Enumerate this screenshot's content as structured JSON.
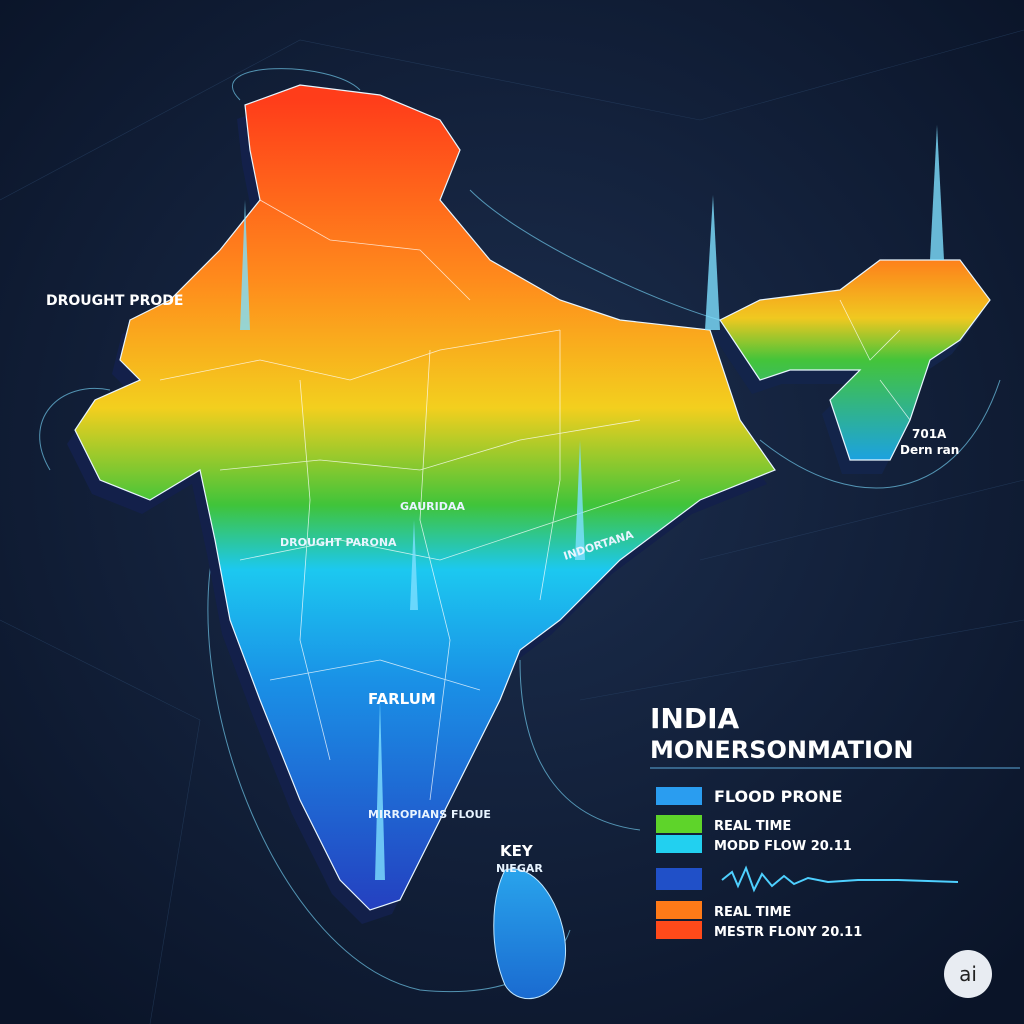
{
  "title": {
    "line1": "INDIA",
    "line2": "MONERSONMATION"
  },
  "map_labels": {
    "drought_left": "DROUGHT PRODE",
    "drought_central": "DROUGHT PARONA",
    "central": "GAURIDAA",
    "middle": "INDORTANA",
    "south": "FARLUM",
    "south_tip": "MIRROPIANS FLOUE",
    "key": "KEY",
    "niegar": "NIEGAR",
    "northeast_code": "701A",
    "northeast_name": "Dern ran"
  },
  "legend": [
    {
      "label": "FLOOD PRONE",
      "color": "#2a9df0"
    },
    {
      "label": "REAL TIME",
      "color": "#5ed42a"
    },
    {
      "label": "MODD FLOW 20.11",
      "color": "#22d0f0"
    },
    {
      "label": "REAL TIME",
      "color": "#ff7a18"
    },
    {
      "label": "MESTR FLONY 20.11",
      "color": "#ff4a1a"
    }
  ],
  "badge": "ai"
}
